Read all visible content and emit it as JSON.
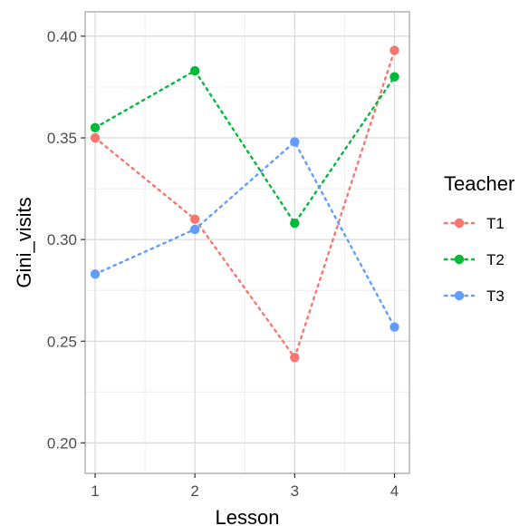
{
  "chart_data": {
    "type": "line",
    "x": [
      1,
      2,
      3,
      4
    ],
    "xlabel": "Lesson",
    "ylabel": "Gini_visits",
    "xticks": [
      "1",
      "2",
      "3",
      "4"
    ],
    "yticks": [
      "0.20",
      "0.25",
      "0.30",
      "0.35",
      "0.40"
    ],
    "xlim": [
      0.9,
      4.15
    ],
    "ylim": [
      0.185,
      0.412
    ],
    "grid": true,
    "legend_position": "right",
    "legend_title": "Teacher",
    "line_style": "dotted",
    "series": [
      {
        "name": "T1",
        "color": "#F8766D",
        "values": [
          0.35,
          0.31,
          0.242,
          0.393
        ]
      },
      {
        "name": "T2",
        "color": "#00BA38",
        "values": [
          0.355,
          0.383,
          0.308,
          0.38
        ]
      },
      {
        "name": "T3",
        "color": "#619CFF",
        "values": [
          0.283,
          0.305,
          0.348,
          0.257
        ]
      }
    ]
  }
}
